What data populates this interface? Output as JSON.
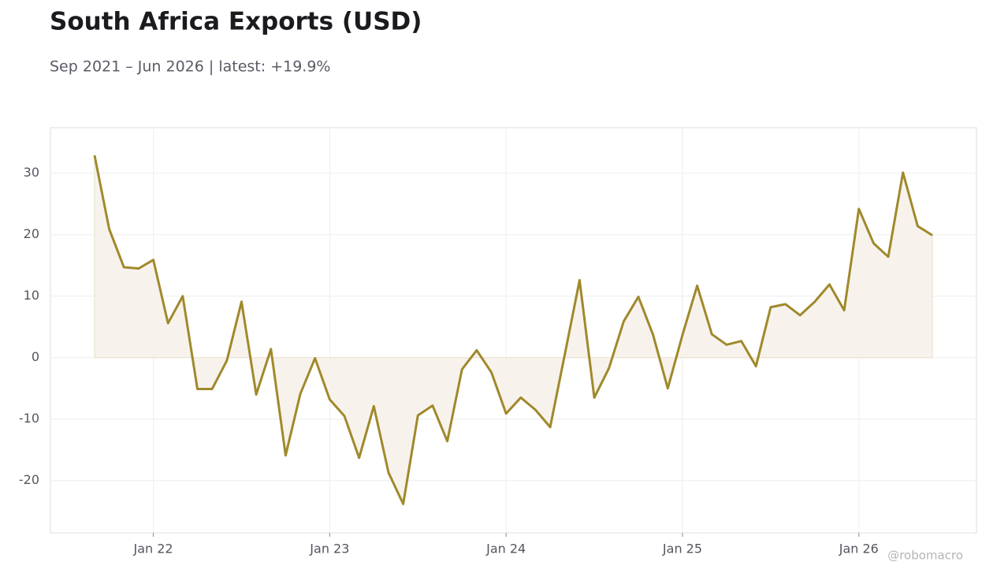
{
  "chart_data": {
    "type": "line",
    "title": "South Africa Exports (USD)",
    "subtitle": "Sep 2021 – Jun 2026 | latest: +19.9%",
    "watermark": "@robomacro",
    "x": [
      "2021-09",
      "2021-10",
      "2021-11",
      "2021-12",
      "2022-01",
      "2022-02",
      "2022-03",
      "2022-04",
      "2022-05",
      "2022-06",
      "2022-07",
      "2022-08",
      "2022-09",
      "2022-10",
      "2022-11",
      "2022-12",
      "2023-01",
      "2023-02",
      "2023-03",
      "2023-04",
      "2023-05",
      "2023-06",
      "2023-07",
      "2023-08",
      "2023-09",
      "2023-10",
      "2023-11",
      "2023-12",
      "2024-01",
      "2024-02",
      "2024-03",
      "2024-04",
      "2024-05",
      "2024-06",
      "2024-07",
      "2024-08",
      "2024-09",
      "2024-10",
      "2024-11",
      "2024-12",
      "2025-01",
      "2025-02",
      "2025-03",
      "2025-04",
      "2025-05",
      "2025-06",
      "2025-07",
      "2025-08",
      "2025-09",
      "2025-10",
      "2025-11",
      "2025-12",
      "2026-01",
      "2026-02",
      "2026-03",
      "2026-04",
      "2026-05",
      "2026-06"
    ],
    "series": [
      {
        "name": "Exports",
        "color": "#a0892c",
        "fill": "#f7f3ec",
        "values": [
          32.9,
          20.9,
          14.7,
          14.5,
          15.9,
          5.6,
          10.0,
          -5.1,
          -5.1,
          -0.5,
          9.1,
          -6.0,
          1.4,
          -15.9,
          -5.9,
          -0.1,
          -6.8,
          -9.5,
          -16.3,
          -7.9,
          -18.7,
          -23.8,
          -9.4,
          -7.8,
          -13.6,
          -1.9,
          1.2,
          -2.4,
          -9.1,
          -6.5,
          -8.5,
          -11.3,
          0.6,
          12.6,
          -6.5,
          -1.7,
          5.9,
          9.9,
          3.7,
          -5.0,
          3.7,
          11.7,
          3.8,
          2.1,
          2.7,
          -1.4,
          8.2,
          8.7,
          6.9,
          9.1,
          11.9,
          7.7,
          24.2,
          18.6,
          16.4,
          30.1,
          21.4,
          19.9
        ]
      }
    ],
    "xlim": [
      "2021-06",
      "2026-09"
    ],
    "xticks": [
      {
        "value": "2022-01",
        "label": "Jan 22"
      },
      {
        "value": "2023-01",
        "label": "Jan 23"
      },
      {
        "value": "2024-01",
        "label": "Jan 24"
      },
      {
        "value": "2025-01",
        "label": "Jan 25"
      },
      {
        "value": "2026-01",
        "label": "Jan 26"
      }
    ],
    "ylim": [
      -28.5,
      37.4
    ],
    "yticks": [
      -20,
      -10,
      0,
      10,
      20,
      30
    ],
    "grid": true
  }
}
